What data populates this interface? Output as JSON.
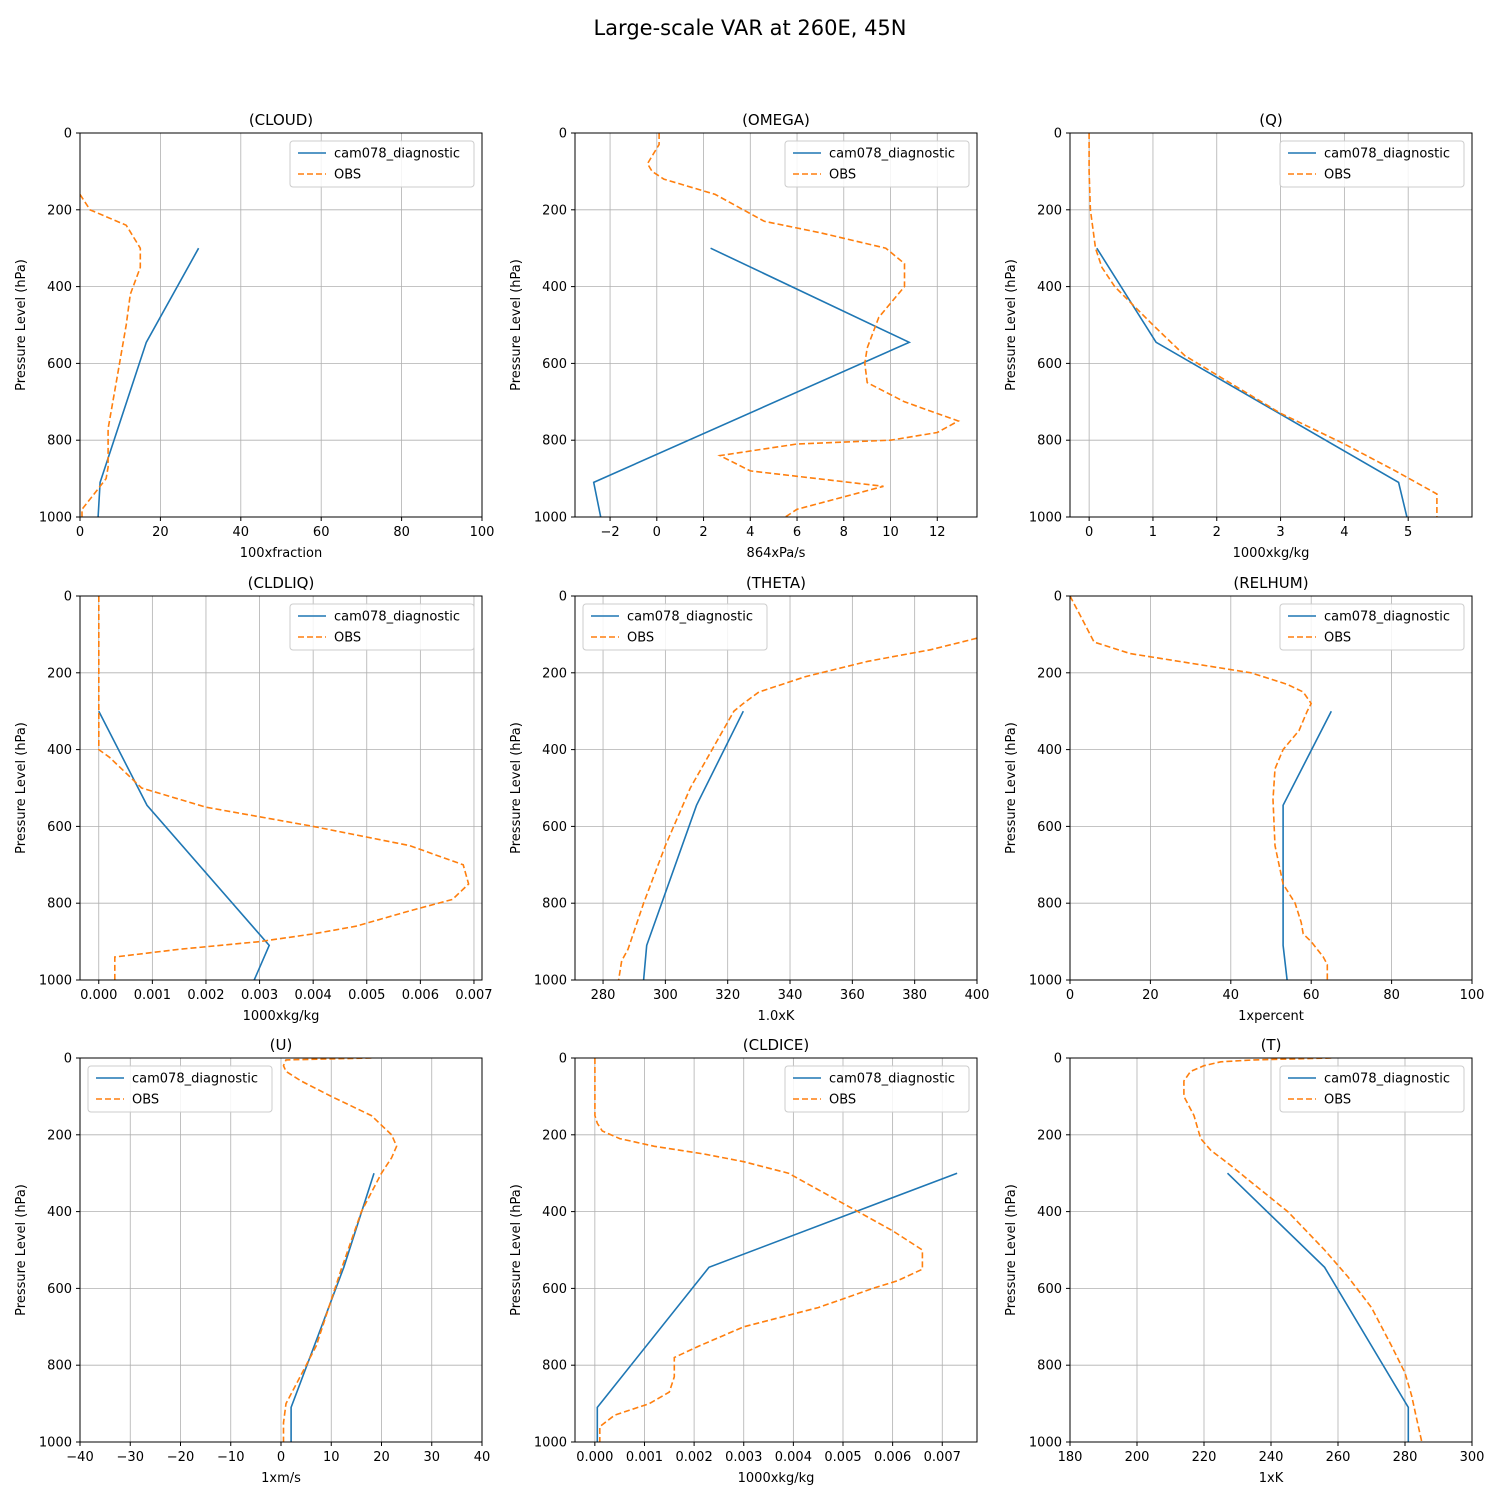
{
  "figure": {
    "title": "Large-scale VAR at 260E, 45N"
  },
  "colors": {
    "model": "#1f77b4",
    "obs": "#ff7f0e",
    "grid": "#b0b0b0",
    "legend_border": "#cccccc"
  },
  "chart_data": [
    {
      "type": "line",
      "title": "(CLOUD)",
      "xlabel": "100xfraction",
      "ylabel": "Pressure Level (hPa)",
      "xlim": [
        0,
        100
      ],
      "ylim": [
        1000,
        0
      ],
      "xticks": [
        0,
        20,
        40,
        60,
        80,
        100
      ],
      "xtick_labels": [
        "0",
        "20",
        "40",
        "60",
        "80",
        "100"
      ],
      "yticks": [
        0,
        200,
        400,
        600,
        800,
        1000
      ],
      "ytick_labels": [
        "0",
        "200",
        "400",
        "600",
        "800",
        "1000"
      ],
      "legend": "upper right",
      "grid": true,
      "series": [
        {
          "name": "cam078_diagnostic",
          "style": "solid",
          "x": [
            29.5,
            16.5,
            5.0,
            4.5
          ],
          "y": [
            300,
            545,
            910,
            1000
          ]
        },
        {
          "name": "OBS",
          "style": "dashed",
          "x": [
            0,
            2.5,
            11.5,
            15,
            15,
            12.5,
            11.5,
            9,
            7,
            7,
            7,
            6.5,
            3.5,
            0.5,
            0.5
          ],
          "y": [
            160,
            200,
            240,
            300,
            350,
            420,
            500,
            650,
            770,
            850,
            870,
            900,
            940,
            980,
            1000
          ]
        }
      ]
    },
    {
      "type": "line",
      "title": "(OMEGA)",
      "xlabel": "864xPa/s",
      "ylabel": "Pressure Level (hPa)",
      "xlim": [
        -3.5,
        13.7
      ],
      "ylim": [
        1000,
        0
      ],
      "xticks": [
        -2,
        0,
        2,
        4,
        6,
        8,
        10,
        12
      ],
      "xtick_labels": [
        "−2",
        "0",
        "2",
        "4",
        "6",
        "8",
        "10",
        "12"
      ],
      "yticks": [
        0,
        200,
        400,
        600,
        800,
        1000
      ],
      "ytick_labels": [
        "0",
        "200",
        "400",
        "600",
        "800",
        "1000"
      ],
      "legend": "upper right",
      "grid": true,
      "series": [
        {
          "name": "cam078_diagnostic",
          "style": "solid",
          "x": [
            2.3,
            10.8,
            -2.7,
            -2.4
          ],
          "y": [
            300,
            545,
            910,
            1000
          ]
        },
        {
          "name": "OBS",
          "style": "dashed",
          "x": [
            0.1,
            0.1,
            -0.2,
            -0.4,
            -0.2,
            0.3,
            2.5,
            4.6,
            7,
            9.8,
            10.6,
            10.6,
            9.5,
            9,
            8.9,
            9,
            10.6,
            12.9,
            12,
            10,
            6,
            2.7,
            4,
            9.7,
            6,
            5.5
          ],
          "y": [
            0,
            30,
            60,
            80,
            100,
            120,
            160,
            230,
            260,
            300,
            340,
            400,
            480,
            560,
            600,
            650,
            700,
            750,
            780,
            800,
            810,
            840,
            880,
            920,
            980,
            1000
          ]
        }
      ]
    },
    {
      "type": "line",
      "title": "(Q)",
      "xlabel": "1000xkg/kg",
      "ylabel": "Pressure Level (hPa)",
      "xlim": [
        -0.3,
        6.0
      ],
      "ylim": [
        1000,
        0
      ],
      "xticks": [
        0,
        1,
        2,
        3,
        4,
        5
      ],
      "xtick_labels": [
        "0",
        "1",
        "2",
        "3",
        "4",
        "5"
      ],
      "yticks": [
        0,
        200,
        400,
        600,
        800,
        1000
      ],
      "ytick_labels": [
        "0",
        "200",
        "400",
        "600",
        "800",
        "1000"
      ],
      "legend": "upper right",
      "grid": true,
      "series": [
        {
          "name": "cam078_diagnostic",
          "style": "solid",
          "x": [
            0.12,
            1.05,
            4.85,
            4.98
          ],
          "y": [
            300,
            545,
            910,
            1000
          ]
        },
        {
          "name": "OBS",
          "style": "dashed",
          "x": [
            0,
            0,
            0.02,
            0.1,
            0.2,
            0.4,
            0.7,
            1.0,
            1.5,
            2.2,
            3.0,
            4.0,
            4.8,
            5.45,
            5.45
          ],
          "y": [
            0,
            100,
            200,
            300,
            350,
            400,
            450,
            500,
            580,
            650,
            730,
            810,
            880,
            940,
            1000
          ]
        }
      ]
    },
    {
      "type": "line",
      "title": "(CLDLIQ)",
      "xlabel": "1000xkg/kg",
      "ylabel": "Pressure Level (hPa)",
      "xlim": [
        -0.00035,
        0.00715
      ],
      "ylim": [
        1000,
        0
      ],
      "xticks": [
        0,
        0.001,
        0.002,
        0.003,
        0.004,
        0.005,
        0.006,
        0.007
      ],
      "xtick_labels": [
        "0.000",
        "0.001",
        "0.002",
        "0.003",
        "0.004",
        "0.005",
        "0.006",
        "0.007"
      ],
      "yticks": [
        0,
        200,
        400,
        600,
        800,
        1000
      ],
      "ytick_labels": [
        "0",
        "200",
        "400",
        "600",
        "800",
        "1000"
      ],
      "legend": "upper right",
      "grid": true,
      "series": [
        {
          "name": "cam078_diagnostic",
          "style": "solid",
          "x": [
            0,
            0.0009,
            0.00318,
            0.0029
          ],
          "y": [
            300,
            545,
            910,
            1000
          ]
        },
        {
          "name": "OBS",
          "style": "dashed",
          "x": [
            0,
            0,
            0,
            0,
            0.0002,
            0.0008,
            0.002,
            0.004,
            0.0058,
            0.0068,
            0.0069,
            0.0066,
            0.0058,
            0.0048,
            0.004,
            0.003,
            0.0015,
            0.0003,
            0.0003,
            0.0003
          ],
          "y": [
            0,
            100,
            200,
            400,
            420,
            500,
            550,
            600,
            650,
            700,
            750,
            790,
            820,
            860,
            880,
            900,
            920,
            940,
            950,
            1000
          ]
        }
      ]
    },
    {
      "type": "line",
      "title": "(THETA)",
      "xlabel": "1.0xK",
      "ylabel": "Pressure Level (hPa)",
      "xlim": [
        271,
        400
      ],
      "ylim": [
        1000,
        0
      ],
      "xticks": [
        280,
        300,
        320,
        340,
        360,
        380,
        400
      ],
      "xtick_labels": [
        "280",
        "300",
        "320",
        "340",
        "360",
        "380",
        "400"
      ],
      "yticks": [
        0,
        200,
        400,
        600,
        800,
        1000
      ],
      "ytick_labels": [
        "0",
        "200",
        "400",
        "600",
        "800",
        "1000"
      ],
      "legend": "upper left",
      "grid": true,
      "series": [
        {
          "name": "cam078_diagnostic",
          "style": "solid",
          "x": [
            325,
            310,
            294,
            293
          ],
          "y": [
            300,
            545,
            910,
            1000
          ]
        },
        {
          "name": "OBS",
          "style": "dashed",
          "x": [
            400,
            385,
            365,
            345,
            330,
            325,
            322,
            315,
            308,
            300,
            293,
            288,
            286,
            285
          ],
          "y": [
            110,
            140,
            170,
            210,
            250,
            280,
            300,
            400,
            500,
            650,
            800,
            920,
            950,
            1000
          ]
        }
      ]
    },
    {
      "type": "line",
      "title": "(RELHUM)",
      "xlabel": "1xpercent",
      "ylabel": "Pressure Level (hPa)",
      "xlim": [
        0,
        100
      ],
      "ylim": [
        1000,
        0
      ],
      "xticks": [
        0,
        20,
        40,
        60,
        80,
        100
      ],
      "xtick_labels": [
        "0",
        "20",
        "40",
        "60",
        "80",
        "100"
      ],
      "yticks": [
        0,
        200,
        400,
        600,
        800,
        1000
      ],
      "ytick_labels": [
        "0",
        "200",
        "400",
        "600",
        "800",
        "1000"
      ],
      "legend": "upper right",
      "grid": true,
      "series": [
        {
          "name": "cam078_diagnostic",
          "style": "solid",
          "x": [
            65,
            53,
            53,
            54
          ],
          "y": [
            300,
            545,
            910,
            1000
          ]
        },
        {
          "name": "OBS",
          "style": "dashed",
          "x": [
            0,
            3,
            6,
            15,
            30,
            45,
            54,
            58,
            60,
            59,
            57,
            53,
            51,
            50.5,
            51,
            53,
            56,
            57.5,
            58,
            60,
            63,
            64,
            64
          ],
          "y": [
            0,
            60,
            120,
            150,
            175,
            200,
            230,
            250,
            280,
            300,
            350,
            400,
            450,
            530,
            650,
            750,
            800,
            850,
            880,
            900,
            940,
            960,
            1000
          ]
        }
      ]
    },
    {
      "type": "line",
      "title": "(U)",
      "xlabel": "1xm/s",
      "ylabel": "Pressure Level (hPa)",
      "xlim": [
        -40,
        40
      ],
      "ylim": [
        1000,
        0
      ],
      "xticks": [
        -40,
        -30,
        -20,
        -10,
        0,
        10,
        20,
        30,
        40
      ],
      "xtick_labels": [
        "−40",
        "−30",
        "−20",
        "−10",
        "0",
        "10",
        "20",
        "30",
        "40"
      ],
      "yticks": [
        0,
        200,
        400,
        600,
        800,
        1000
      ],
      "ytick_labels": [
        "0",
        "200",
        "400",
        "600",
        "800",
        "1000"
      ],
      "legend": "upper left",
      "grid": true,
      "series": [
        {
          "name": "cam078_diagnostic",
          "style": "solid",
          "x": [
            18.5,
            12.5,
            2,
            2
          ],
          "y": [
            300,
            545,
            910,
            1000
          ]
        },
        {
          "name": "OBS",
          "style": "dashed",
          "x": [
            18,
            1,
            0.5,
            1,
            4,
            10,
            18,
            22,
            23,
            22,
            20,
            16,
            12,
            7,
            3,
            1,
            0.5,
            0.5
          ],
          "y": [
            0,
            5,
            20,
            35,
            60,
            100,
            150,
            200,
            230,
            260,
            300,
            400,
            550,
            750,
            850,
            900,
            950,
            1000
          ]
        }
      ]
    },
    {
      "type": "line",
      "title": "(CLDICE)",
      "xlabel": "1000xkg/kg",
      "ylabel": "Pressure Level (hPa)",
      "xlim": [
        -0.0004,
        0.0077
      ],
      "ylim": [
        1000,
        0
      ],
      "xticks": [
        0,
        0.001,
        0.002,
        0.003,
        0.004,
        0.005,
        0.006,
        0.007
      ],
      "xtick_labels": [
        "0.000",
        "0.001",
        "0.002",
        "0.003",
        "0.004",
        "0.005",
        "0.006",
        "0.007"
      ],
      "yticks": [
        0,
        200,
        400,
        600,
        800,
        1000
      ],
      "ytick_labels": [
        "0",
        "200",
        "400",
        "600",
        "800",
        "1000"
      ],
      "legend": "upper right",
      "grid": true,
      "series": [
        {
          "name": "cam078_diagnostic",
          "style": "solid",
          "x": [
            0.0073,
            0.0023,
            5e-05,
            5e-05
          ],
          "y": [
            300,
            545,
            910,
            1000
          ]
        },
        {
          "name": "OBS",
          "style": "dashed",
          "x": [
            0,
            0,
            0,
            5e-05,
            0.00015,
            0.0005,
            0.0012,
            0.0022,
            0.003,
            0.0039,
            0.0046,
            0.0053,
            0.006,
            0.0066,
            0.0066,
            0.0061,
            0.0056,
            0.0045,
            0.003,
            0.0021,
            0.0016,
            0.0016,
            0.0015,
            0.0011,
            0.0004,
            0.0001,
            0.0001
          ],
          "y": [
            0,
            100,
            150,
            170,
            190,
            210,
            230,
            250,
            270,
            300,
            350,
            400,
            450,
            500,
            550,
            580,
            600,
            650,
            700,
            750,
            780,
            830,
            870,
            900,
            930,
            960,
            1000
          ]
        }
      ]
    },
    {
      "type": "line",
      "title": "(T)",
      "xlabel": "1xK",
      "ylabel": "Pressure Level (hPa)",
      "xlim": [
        180,
        300
      ],
      "ylim": [
        1000,
        0
      ],
      "xticks": [
        180,
        200,
        220,
        240,
        260,
        280,
        300
      ],
      "xtick_labels": [
        "180",
        "200",
        "220",
        "240",
        "260",
        "280",
        "300"
      ],
      "yticks": [
        0,
        200,
        400,
        600,
        800,
        1000
      ],
      "ytick_labels": [
        "0",
        "200",
        "400",
        "600",
        "800",
        "1000"
      ],
      "legend": "upper right",
      "grid": true,
      "series": [
        {
          "name": "cam078_diagnostic",
          "style": "solid",
          "x": [
            227,
            256,
            281,
            281
          ],
          "y": [
            300,
            545,
            910,
            1000
          ]
        },
        {
          "name": "OBS",
          "style": "dashed",
          "x": [
            258,
            235,
            225,
            220,
            216,
            214,
            214,
            217,
            218,
            219,
            222,
            228,
            235,
            245,
            256,
            263,
            270,
            276,
            280,
            282,
            283,
            285
          ],
          "y": [
            0,
            5,
            10,
            20,
            35,
            60,
            100,
            150,
            180,
            210,
            240,
            280,
            330,
            400,
            500,
            570,
            650,
            750,
            820,
            880,
            920,
            1000
          ]
        }
      ]
    }
  ]
}
